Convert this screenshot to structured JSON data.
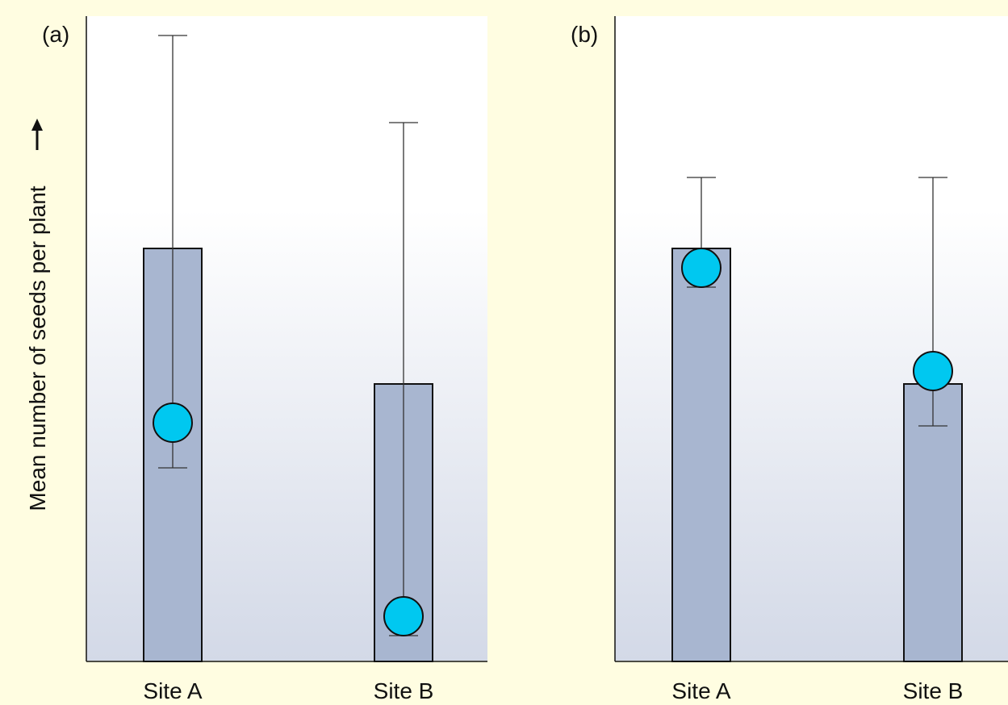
{
  "ylabel": "Mean number of seeds per plant",
  "colors": {
    "background": "#fffde1",
    "bar_fill": "#a8b6d0",
    "marker_fill": "#00c8f0",
    "plot_gradient_top": "#ffffff",
    "plot_gradient_bottom": "#d3d9e7"
  },
  "chart_data": [
    {
      "type": "bar",
      "panel_label": "(a)",
      "categories": [
        "Site A",
        "Site B"
      ],
      "values": [
        6.4,
        4.3
      ],
      "points": [
        3.7,
        0.7
      ],
      "error_low": [
        3.0,
        0.4
      ],
      "error_high": [
        9.7,
        8.35
      ],
      "ylim": [
        0,
        10
      ],
      "grid": false
    },
    {
      "type": "bar",
      "panel_label": "(b)",
      "categories": [
        "Site A",
        "Site B"
      ],
      "values": [
        6.4,
        4.3
      ],
      "points": [
        6.1,
        4.5
      ],
      "error_low": [
        5.8,
        3.65
      ],
      "error_high": [
        7.5,
        7.5
      ],
      "ylim": [
        0,
        10
      ],
      "grid": false
    }
  ]
}
